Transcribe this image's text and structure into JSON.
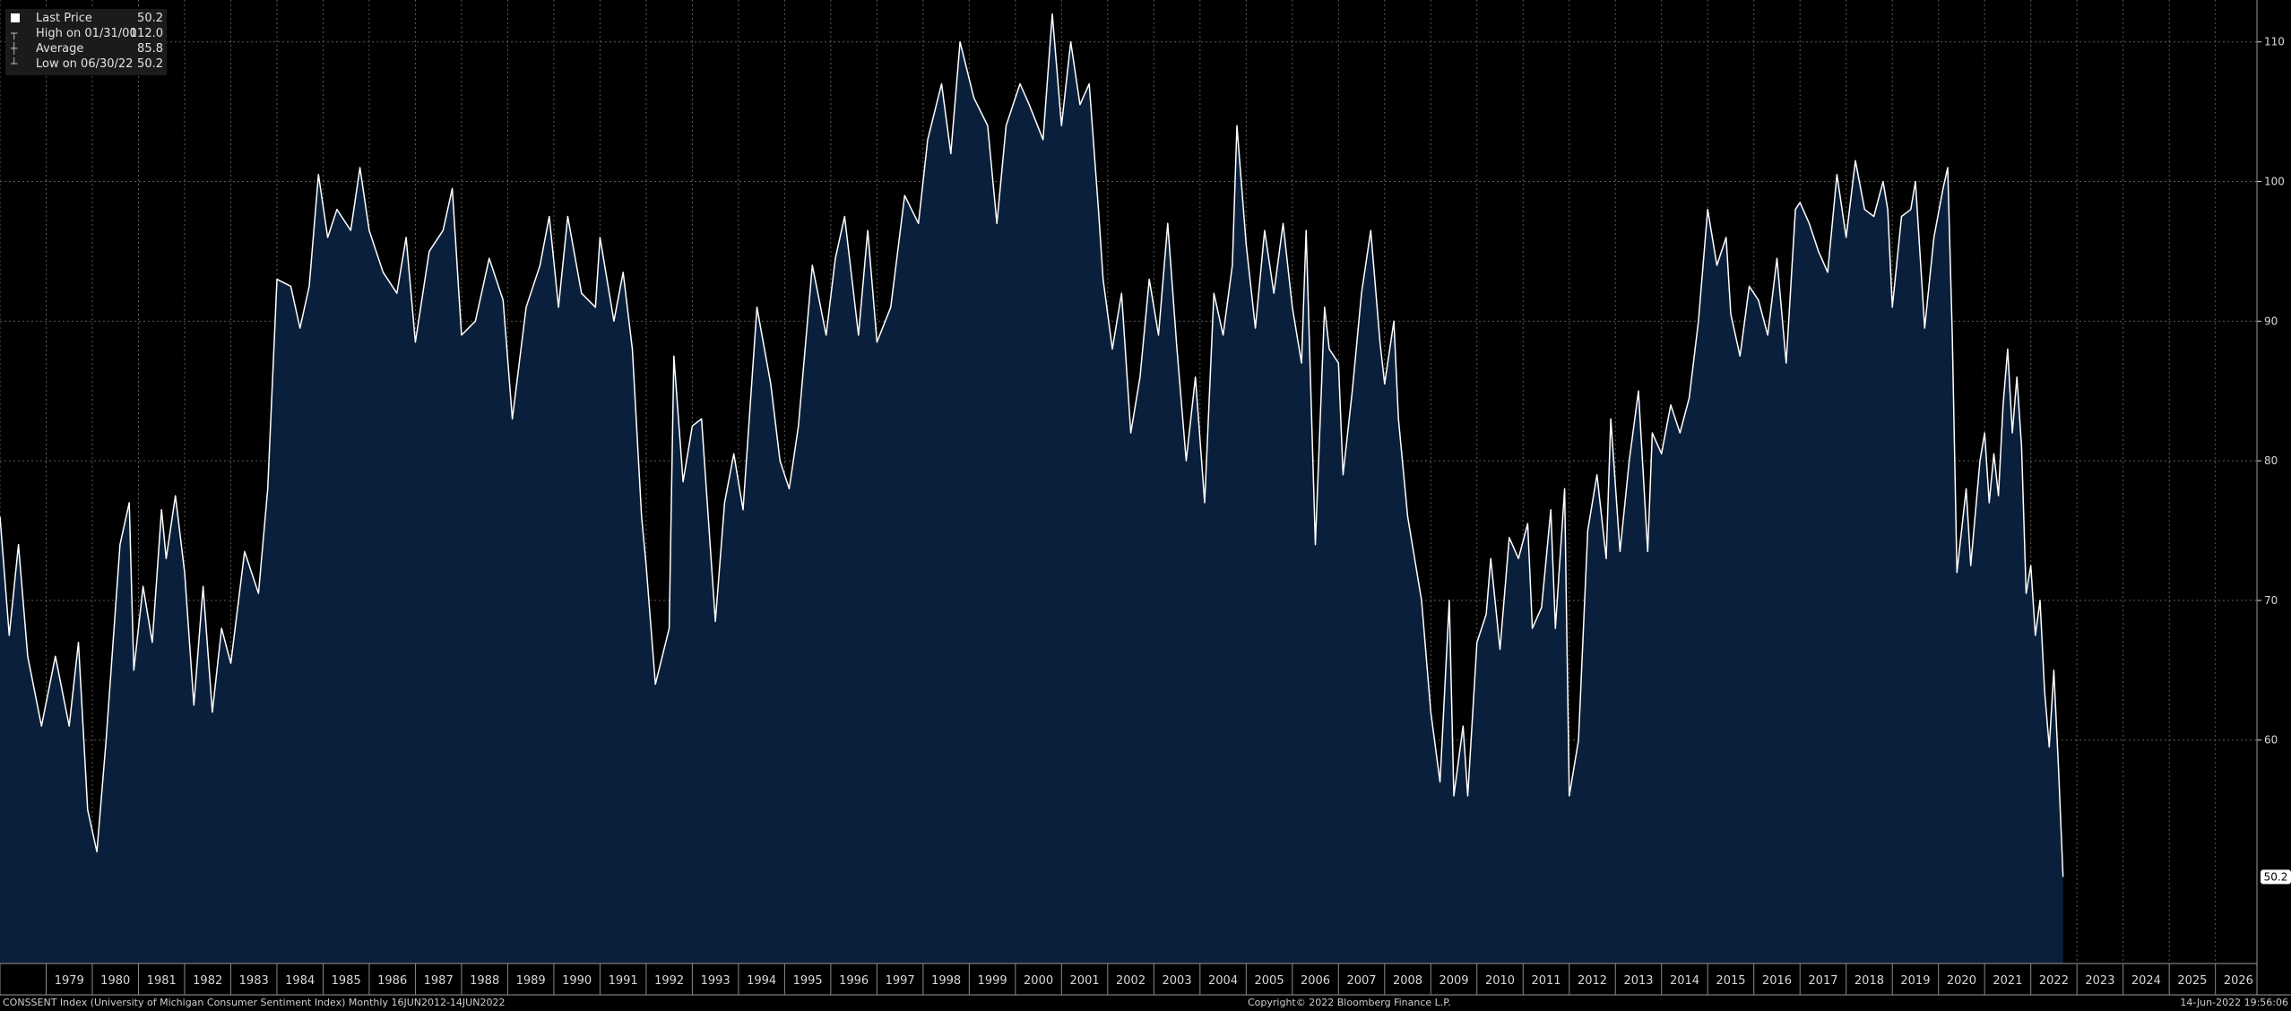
{
  "legend": {
    "rows": [
      {
        "label": "Last Price",
        "value": "50.2",
        "icon": "series-swatch"
      },
      {
        "label": "High on 01/31/00",
        "value": "112.0",
        "icon": "high-marker-icon"
      },
      {
        "label": "Average",
        "value": "85.8",
        "icon": "average-marker-icon"
      },
      {
        "label": "Low on 06/30/22",
        "value": "50.2",
        "icon": "low-marker-icon"
      }
    ]
  },
  "footer": {
    "left": "CONSSENT Index (University of Michigan Consumer Sentiment Index)  Monthly 16JUN2012-14JUN2022",
    "center": "Copyright© 2022 Bloomberg Finance L.P.",
    "right": "14-Jun-2022 19:56:06"
  },
  "colors": {
    "background": "#000000",
    "area_fill": "#0a1f3b",
    "line": "#ffffff",
    "grid": "#5a5a5a",
    "axis_text": "#d8d8d8",
    "last_price_box": "#ffffff"
  },
  "chart_data": {
    "type": "area",
    "title": "",
    "xlabel": "",
    "ylabel": "",
    "x_range": [
      1978.0,
      2026.9
    ],
    "ylim": [
      44,
      113
    ],
    "y_ticks": [
      60,
      70,
      80,
      90,
      100,
      110
    ],
    "x_ticks": [
      "1979",
      "1980",
      "1981",
      "1982",
      "1983",
      "1984",
      "1985",
      "1986",
      "1987",
      "1988",
      "1989",
      "1990",
      "1991",
      "1992",
      "1993",
      "1994",
      "1995",
      "1996",
      "1997",
      "1998",
      "1999",
      "2000",
      "2001",
      "2002",
      "2003",
      "2004",
      "2005",
      "2006",
      "2007",
      "2008",
      "2009",
      "2010",
      "2011",
      "2012",
      "2013",
      "2014",
      "2015",
      "2016",
      "2017",
      "2018",
      "2019",
      "2020",
      "2021",
      "2022",
      "2023",
      "2024",
      "2025",
      "2026"
    ],
    "grid": true,
    "legend": "top-left",
    "last_value_label": "50.2",
    "series": [
      {
        "name": "CONSSENT Index",
        "points": [
          [
            1978.0,
            76.0
          ],
          [
            1978.2,
            67.5
          ],
          [
            1978.4,
            74.0
          ],
          [
            1978.6,
            66.0
          ],
          [
            1978.9,
            61.0
          ],
          [
            1979.2,
            66.0
          ],
          [
            1979.5,
            61.0
          ],
          [
            1979.7,
            67.0
          ],
          [
            1979.9,
            55.0
          ],
          [
            1980.1,
            52.0
          ],
          [
            1980.3,
            60.0
          ],
          [
            1980.6,
            74.0
          ],
          [
            1980.8,
            77.0
          ],
          [
            1980.9,
            65.0
          ],
          [
            1981.1,
            71.0
          ],
          [
            1981.3,
            67.0
          ],
          [
            1981.5,
            76.5
          ],
          [
            1981.6,
            73.0
          ],
          [
            1981.8,
            77.5
          ],
          [
            1982.0,
            72.0
          ],
          [
            1982.2,
            62.5
          ],
          [
            1982.4,
            71.0
          ],
          [
            1982.6,
            62.0
          ],
          [
            1982.8,
            68.0
          ],
          [
            1983.0,
            65.5
          ],
          [
            1983.3,
            73.5
          ],
          [
            1983.6,
            70.5
          ],
          [
            1983.8,
            78.0
          ],
          [
            1984.0,
            93.0
          ],
          [
            1984.3,
            92.5
          ],
          [
            1984.5,
            89.5
          ],
          [
            1984.7,
            92.5
          ],
          [
            1984.9,
            100.5
          ],
          [
            1985.1,
            96.0
          ],
          [
            1985.3,
            98.0
          ],
          [
            1985.6,
            96.5
          ],
          [
            1985.8,
            101.0
          ],
          [
            1986.0,
            96.5
          ],
          [
            1986.3,
            93.5
          ],
          [
            1986.6,
            92.0
          ],
          [
            1986.8,
            96.0
          ],
          [
            1987.0,
            88.5
          ],
          [
            1987.3,
            95.0
          ],
          [
            1987.6,
            96.5
          ],
          [
            1987.8,
            99.5
          ],
          [
            1988.0,
            89.0
          ],
          [
            1988.3,
            90.0
          ],
          [
            1988.6,
            94.5
          ],
          [
            1988.9,
            91.5
          ],
          [
            1989.1,
            83.0
          ],
          [
            1989.4,
            91.0
          ],
          [
            1989.7,
            94.0
          ],
          [
            1989.9,
            97.5
          ],
          [
            1990.1,
            91.0
          ],
          [
            1990.3,
            97.5
          ],
          [
            1990.6,
            92.0
          ],
          [
            1990.9,
            91.0
          ],
          [
            1991.0,
            96.0
          ],
          [
            1991.3,
            90.0
          ],
          [
            1991.5,
            93.5
          ],
          [
            1991.7,
            88.0
          ],
          [
            1991.9,
            76.0
          ],
          [
            1992.0,
            72.5
          ],
          [
            1992.2,
            64.0
          ],
          [
            1992.5,
            68.0
          ],
          [
            1992.6,
            87.5
          ],
          [
            1992.8,
            78.5
          ],
          [
            1993.0,
            82.5
          ],
          [
            1993.2,
            83.0
          ],
          [
            1993.5,
            68.5
          ],
          [
            1993.7,
            77.0
          ],
          [
            1993.9,
            80.5
          ],
          [
            1994.1,
            76.5
          ],
          [
            1994.4,
            91.0
          ],
          [
            1994.7,
            85.5
          ],
          [
            1994.9,
            80.0
          ],
          [
            1995.1,
            78.0
          ],
          [
            1995.3,
            82.5
          ],
          [
            1995.6,
            94.0
          ],
          [
            1995.9,
            89.0
          ],
          [
            1996.1,
            94.5
          ],
          [
            1996.3,
            97.5
          ],
          [
            1996.6,
            89.0
          ],
          [
            1996.8,
            96.5
          ],
          [
            1997.0,
            88.5
          ],
          [
            1997.3,
            91.0
          ],
          [
            1997.6,
            99.0
          ],
          [
            1997.9,
            97.0
          ],
          [
            1998.1,
            103.0
          ],
          [
            1998.4,
            107.0
          ],
          [
            1998.6,
            102.0
          ],
          [
            1998.8,
            110.0
          ],
          [
            1999.1,
            106.0
          ],
          [
            1999.4,
            104.0
          ],
          [
            1999.6,
            97.0
          ],
          [
            1999.8,
            104.0
          ],
          [
            2000.1,
            107.0
          ],
          [
            2000.3,
            105.5
          ],
          [
            2000.6,
            103.0
          ],
          [
            2000.8,
            112.0
          ],
          [
            2001.0,
            104.0
          ],
          [
            2001.2,
            110.0
          ],
          [
            2001.4,
            105.5
          ],
          [
            2001.6,
            107.0
          ],
          [
            2001.8,
            98.0
          ],
          [
            2001.9,
            93.0
          ],
          [
            2002.1,
            88.0
          ],
          [
            2002.3,
            92.0
          ],
          [
            2002.5,
            82.0
          ],
          [
            2002.7,
            86.0
          ],
          [
            2002.9,
            93.0
          ],
          [
            2003.1,
            89.0
          ],
          [
            2003.3,
            97.0
          ],
          [
            2003.5,
            88.0
          ],
          [
            2003.7,
            80.0
          ],
          [
            2003.9,
            86.0
          ],
          [
            2004.1,
            77.0
          ],
          [
            2004.3,
            92.0
          ],
          [
            2004.5,
            89.0
          ],
          [
            2004.7,
            94.0
          ],
          [
            2004.8,
            104.0
          ],
          [
            2005.0,
            95.5
          ],
          [
            2005.2,
            89.5
          ],
          [
            2005.4,
            96.5
          ],
          [
            2005.6,
            92.0
          ],
          [
            2005.8,
            97.0
          ],
          [
            2006.0,
            91.0
          ],
          [
            2006.2,
            87.0
          ],
          [
            2006.3,
            96.5
          ],
          [
            2006.5,
            74.0
          ],
          [
            2006.7,
            91.0
          ],
          [
            2006.8,
            88.0
          ],
          [
            2007.0,
            87.0
          ],
          [
            2007.1,
            79.0
          ],
          [
            2007.3,
            85.0
          ],
          [
            2007.5,
            92.0
          ],
          [
            2007.7,
            96.5
          ],
          [
            2007.9,
            88.5
          ],
          [
            2008.0,
            85.5
          ],
          [
            2008.2,
            90.0
          ],
          [
            2008.3,
            83.0
          ],
          [
            2008.5,
            76.0
          ],
          [
            2008.8,
            70.0
          ],
          [
            2009.0,
            62.0
          ],
          [
            2009.2,
            57.0
          ],
          [
            2009.4,
            70.0
          ],
          [
            2009.5,
            56.0
          ],
          [
            2009.7,
            61.0
          ],
          [
            2009.8,
            56.0
          ],
          [
            2010.0,
            67.0
          ],
          [
            2010.2,
            69.0
          ],
          [
            2010.3,
            73.0
          ],
          [
            2010.5,
            66.5
          ],
          [
            2010.7,
            74.5
          ],
          [
            2010.9,
            73.0
          ],
          [
            2011.1,
            75.5
          ],
          [
            2011.2,
            68.0
          ],
          [
            2011.4,
            69.5
          ],
          [
            2011.6,
            76.5
          ],
          [
            2011.7,
            68.0
          ],
          [
            2011.9,
            78.0
          ],
          [
            2012.0,
            56.0
          ],
          [
            2012.2,
            60.0
          ],
          [
            2012.4,
            75.0
          ],
          [
            2012.6,
            79.0
          ],
          [
            2012.8,
            73.0
          ],
          [
            2012.9,
            83.0
          ],
          [
            2013.1,
            73.5
          ],
          [
            2013.3,
            80.0
          ],
          [
            2013.5,
            85.0
          ],
          [
            2013.7,
            73.5
          ],
          [
            2013.8,
            82.0
          ],
          [
            2014.0,
            80.5
          ],
          [
            2014.2,
            84.0
          ],
          [
            2014.4,
            82.0
          ],
          [
            2014.6,
            84.5
          ],
          [
            2014.8,
            90.0
          ],
          [
            2015.0,
            98.0
          ],
          [
            2015.2,
            94.0
          ],
          [
            2015.4,
            96.0
          ],
          [
            2015.5,
            90.5
          ],
          [
            2015.7,
            87.5
          ],
          [
            2015.9,
            92.5
          ],
          [
            2016.1,
            91.5
          ],
          [
            2016.3,
            89.0
          ],
          [
            2016.5,
            94.5
          ],
          [
            2016.7,
            87.0
          ],
          [
            2016.9,
            98.0
          ],
          [
            2017.0,
            98.5
          ],
          [
            2017.2,
            97.0
          ],
          [
            2017.4,
            95.0
          ],
          [
            2017.6,
            93.5
          ],
          [
            2017.8,
            100.5
          ],
          [
            2018.0,
            96.0
          ],
          [
            2018.2,
            101.5
          ],
          [
            2018.4,
            98.0
          ],
          [
            2018.6,
            97.5
          ],
          [
            2018.8,
            100.0
          ],
          [
            2018.9,
            98.0
          ],
          [
            2019.0,
            91.0
          ],
          [
            2019.2,
            97.5
          ],
          [
            2019.4,
            98.0
          ],
          [
            2019.5,
            100.0
          ],
          [
            2019.7,
            89.5
          ],
          [
            2019.9,
            96.0
          ],
          [
            2020.1,
            99.5
          ],
          [
            2020.2,
            101.0
          ],
          [
            2020.3,
            89.0
          ],
          [
            2020.4,
            72.0
          ],
          [
            2020.6,
            78.0
          ],
          [
            2020.7,
            72.5
          ],
          [
            2020.9,
            80.0
          ],
          [
            2021.0,
            82.0
          ],
          [
            2021.1,
            77.0
          ],
          [
            2021.2,
            80.5
          ],
          [
            2021.3,
            77.5
          ],
          [
            2021.4,
            84.0
          ],
          [
            2021.5,
            88.0
          ],
          [
            2021.6,
            82.0
          ],
          [
            2021.7,
            86.0
          ],
          [
            2021.8,
            81.0
          ],
          [
            2021.9,
            70.5
          ],
          [
            2022.0,
            72.5
          ],
          [
            2022.1,
            67.5
          ],
          [
            2022.2,
            70.0
          ],
          [
            2022.3,
            63.5
          ],
          [
            2022.4,
            59.5
          ],
          [
            2022.5,
            65.0
          ],
          [
            2022.6,
            58.0
          ],
          [
            2022.7,
            50.2
          ]
        ]
      }
    ]
  }
}
